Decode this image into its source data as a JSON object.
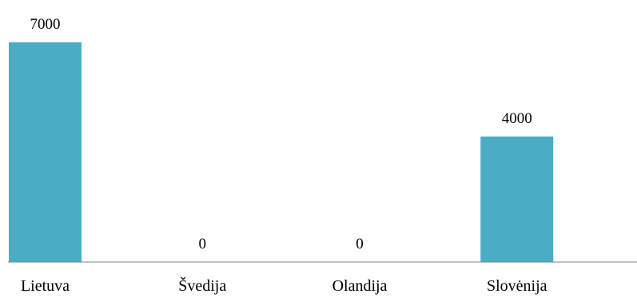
{
  "chart_data": {
    "type": "bar",
    "categories": [
      "Lietuva",
      "Švedija",
      "Olandija",
      "Slovėnija"
    ],
    "values": [
      7000,
      0,
      0,
      4000
    ],
    "data_labels": [
      "7000",
      "0",
      "0",
      "4000"
    ],
    "title": "",
    "xlabel": "",
    "ylabel": "",
    "ylim": [
      0,
      7000
    ],
    "grid": false,
    "legend": "none",
    "colors": {
      "bar": "#4BACC6",
      "axis": "#868686",
      "text": "#000000"
    }
  }
}
